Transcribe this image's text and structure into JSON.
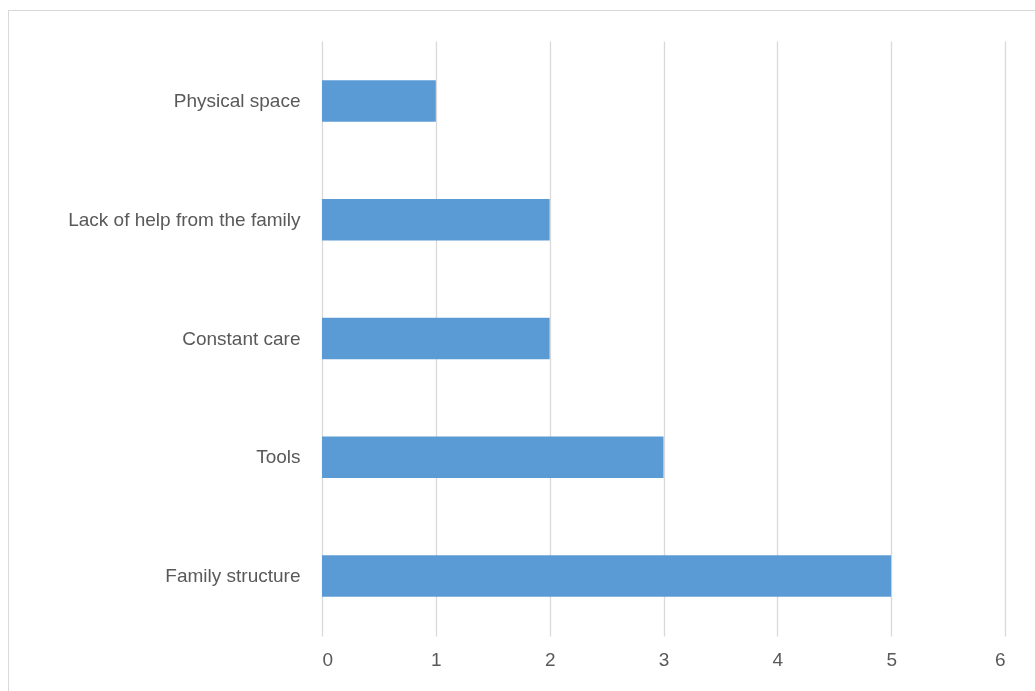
{
  "chart_data": {
    "type": "bar",
    "orientation": "horizontal",
    "categories": [
      "Physical space",
      "Lack of help from the family",
      "Constant care",
      "Tools",
      "Family structure"
    ],
    "values": [
      1,
      2,
      2,
      3,
      5
    ],
    "color": "#5b9bd5",
    "xlim": [
      0,
      6
    ],
    "xticks": [
      0,
      1,
      2,
      3,
      4,
      5,
      6
    ],
    "grid": "x"
  }
}
